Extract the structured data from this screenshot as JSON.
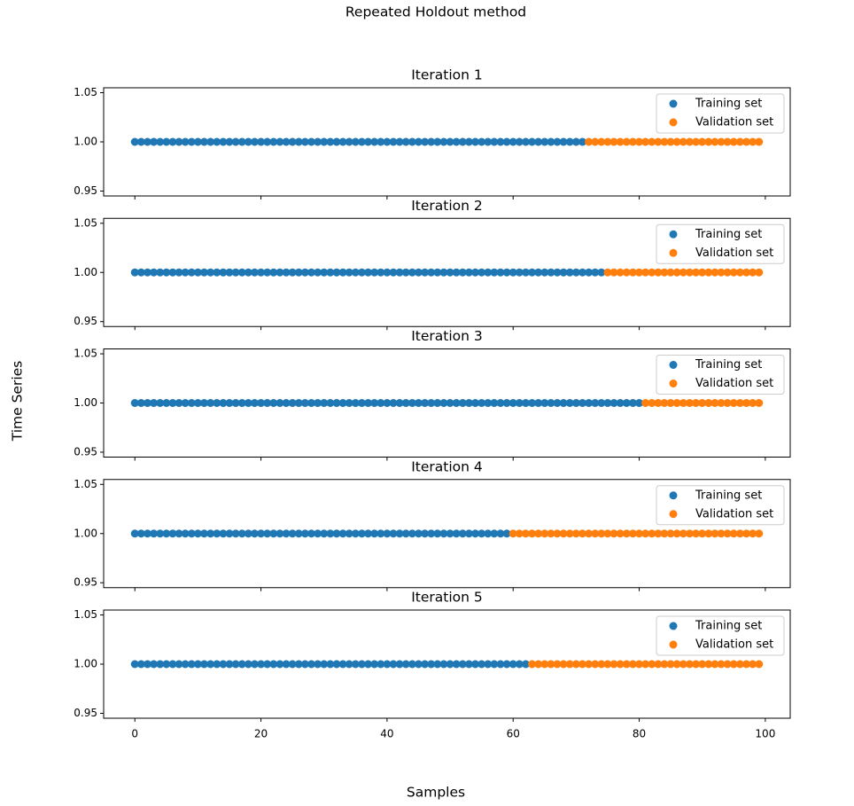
{
  "title": "Repeated Holdout method",
  "x_label": "Samples",
  "y_label": "Time Series",
  "chart_data": [
    {
      "type": "scatter",
      "title": "Iteration 1",
      "xlim": [
        -4.95,
        103.95
      ],
      "ylim": [
        0.945,
        1.055
      ],
      "xticks": [
        0,
        20,
        40,
        60,
        80,
        100
      ],
      "yticks": [
        0.95,
        {
          "value": 1,
          "label": "1.00"
        },
        1.05
      ],
      "legend": "upper right",
      "series": [
        {
          "name": "Training set",
          "color": "#1f77b4",
          "x": [
            0,
            1,
            2,
            3,
            4,
            5,
            6,
            7,
            8,
            9,
            10,
            11,
            12,
            13,
            14,
            15,
            16,
            17,
            18,
            19,
            20,
            21,
            22,
            23,
            24,
            25,
            26,
            27,
            28,
            29,
            30,
            31,
            32,
            33,
            34,
            35,
            36,
            37,
            38,
            39,
            40,
            41,
            42,
            43,
            44,
            45,
            46,
            47,
            48,
            49,
            50,
            51,
            52,
            53,
            54,
            55,
            56,
            57,
            58,
            59,
            60,
            61,
            62,
            63,
            64,
            65,
            66,
            67,
            68,
            69,
            70,
            71
          ],
          "values": [
            1,
            1,
            1,
            1,
            1,
            1,
            1,
            1,
            1,
            1,
            1,
            1,
            1,
            1,
            1,
            1,
            1,
            1,
            1,
            1,
            1,
            1,
            1,
            1,
            1,
            1,
            1,
            1,
            1,
            1,
            1,
            1,
            1,
            1,
            1,
            1,
            1,
            1,
            1,
            1,
            1,
            1,
            1,
            1,
            1,
            1,
            1,
            1,
            1,
            1,
            1,
            1,
            1,
            1,
            1,
            1,
            1,
            1,
            1,
            1,
            1,
            1,
            1,
            1,
            1,
            1,
            1,
            1,
            1,
            1,
            1,
            1
          ]
        },
        {
          "name": "Validation set",
          "color": "#ff7f0e",
          "x": [
            72,
            73,
            74,
            75,
            76,
            77,
            78,
            79,
            80,
            81,
            82,
            83,
            84,
            85,
            86,
            87,
            88,
            89,
            90,
            91,
            92,
            93,
            94,
            95,
            96,
            97,
            98,
            99
          ],
          "values": [
            1,
            1,
            1,
            1,
            1,
            1,
            1,
            1,
            1,
            1,
            1,
            1,
            1,
            1,
            1,
            1,
            1,
            1,
            1,
            1,
            1,
            1,
            1,
            1,
            1,
            1,
            1,
            1
          ]
        }
      ]
    },
    {
      "type": "scatter",
      "title": "Iteration 2",
      "xlim": [
        -4.95,
        103.95
      ],
      "ylim": [
        0.945,
        1.055
      ],
      "xticks": [
        0,
        20,
        40,
        60,
        80,
        100
      ],
      "yticks": [
        0.95,
        {
          "value": 1,
          "label": "1.00"
        },
        1.05
      ],
      "legend": "upper right",
      "series": [
        {
          "name": "Training set",
          "color": "#1f77b4",
          "x": [
            0,
            1,
            2,
            3,
            4,
            5,
            6,
            7,
            8,
            9,
            10,
            11,
            12,
            13,
            14,
            15,
            16,
            17,
            18,
            19,
            20,
            21,
            22,
            23,
            24,
            25,
            26,
            27,
            28,
            29,
            30,
            31,
            32,
            33,
            34,
            35,
            36,
            37,
            38,
            39,
            40,
            41,
            42,
            43,
            44,
            45,
            46,
            47,
            48,
            49,
            50,
            51,
            52,
            53,
            54,
            55,
            56,
            57,
            58,
            59,
            60,
            61,
            62,
            63,
            64,
            65,
            66,
            67,
            68,
            69,
            70,
            71,
            72,
            73,
            74
          ],
          "values": [
            1,
            1,
            1,
            1,
            1,
            1,
            1,
            1,
            1,
            1,
            1,
            1,
            1,
            1,
            1,
            1,
            1,
            1,
            1,
            1,
            1,
            1,
            1,
            1,
            1,
            1,
            1,
            1,
            1,
            1,
            1,
            1,
            1,
            1,
            1,
            1,
            1,
            1,
            1,
            1,
            1,
            1,
            1,
            1,
            1,
            1,
            1,
            1,
            1,
            1,
            1,
            1,
            1,
            1,
            1,
            1,
            1,
            1,
            1,
            1,
            1,
            1,
            1,
            1,
            1,
            1,
            1,
            1,
            1,
            1,
            1,
            1,
            1,
            1,
            1
          ]
        },
        {
          "name": "Validation set",
          "color": "#ff7f0e",
          "x": [
            75,
            76,
            77,
            78,
            79,
            80,
            81,
            82,
            83,
            84,
            85,
            86,
            87,
            88,
            89,
            90,
            91,
            92,
            93,
            94,
            95,
            96,
            97,
            98,
            99
          ],
          "values": [
            1,
            1,
            1,
            1,
            1,
            1,
            1,
            1,
            1,
            1,
            1,
            1,
            1,
            1,
            1,
            1,
            1,
            1,
            1,
            1,
            1,
            1,
            1,
            1,
            1
          ]
        }
      ]
    },
    {
      "type": "scatter",
      "title": "Iteration 3",
      "xlim": [
        -4.95,
        103.95
      ],
      "ylim": [
        0.945,
        1.055
      ],
      "xticks": [
        0,
        20,
        40,
        60,
        80,
        100
      ],
      "yticks": [
        0.95,
        {
          "value": 1,
          "label": "1.00"
        },
        1.05
      ],
      "legend": "upper right",
      "series": [
        {
          "name": "Training set",
          "color": "#1f77b4",
          "x": [
            0,
            1,
            2,
            3,
            4,
            5,
            6,
            7,
            8,
            9,
            10,
            11,
            12,
            13,
            14,
            15,
            16,
            17,
            18,
            19,
            20,
            21,
            22,
            23,
            24,
            25,
            26,
            27,
            28,
            29,
            30,
            31,
            32,
            33,
            34,
            35,
            36,
            37,
            38,
            39,
            40,
            41,
            42,
            43,
            44,
            45,
            46,
            47,
            48,
            49,
            50,
            51,
            52,
            53,
            54,
            55,
            56,
            57,
            58,
            59,
            60,
            61,
            62,
            63,
            64,
            65,
            66,
            67,
            68,
            69,
            70,
            71,
            72,
            73,
            74,
            75,
            76,
            77,
            78,
            79,
            80
          ],
          "values": [
            1,
            1,
            1,
            1,
            1,
            1,
            1,
            1,
            1,
            1,
            1,
            1,
            1,
            1,
            1,
            1,
            1,
            1,
            1,
            1,
            1,
            1,
            1,
            1,
            1,
            1,
            1,
            1,
            1,
            1,
            1,
            1,
            1,
            1,
            1,
            1,
            1,
            1,
            1,
            1,
            1,
            1,
            1,
            1,
            1,
            1,
            1,
            1,
            1,
            1,
            1,
            1,
            1,
            1,
            1,
            1,
            1,
            1,
            1,
            1,
            1,
            1,
            1,
            1,
            1,
            1,
            1,
            1,
            1,
            1,
            1,
            1,
            1,
            1,
            1,
            1,
            1,
            1,
            1,
            1,
            1
          ]
        },
        {
          "name": "Validation set",
          "color": "#ff7f0e",
          "x": [
            81,
            82,
            83,
            84,
            85,
            86,
            87,
            88,
            89,
            90,
            91,
            92,
            93,
            94,
            95,
            96,
            97,
            98,
            99
          ],
          "values": [
            1,
            1,
            1,
            1,
            1,
            1,
            1,
            1,
            1,
            1,
            1,
            1,
            1,
            1,
            1,
            1,
            1,
            1,
            1
          ]
        }
      ]
    },
    {
      "type": "scatter",
      "title": "Iteration 4",
      "xlim": [
        -4.95,
        103.95
      ],
      "ylim": [
        0.945,
        1.055
      ],
      "xticks": [
        0,
        20,
        40,
        60,
        80,
        100
      ],
      "yticks": [
        0.95,
        {
          "value": 1,
          "label": "1.00"
        },
        1.05
      ],
      "legend": "upper right",
      "series": [
        {
          "name": "Training set",
          "color": "#1f77b4",
          "x": [
            0,
            1,
            2,
            3,
            4,
            5,
            6,
            7,
            8,
            9,
            10,
            11,
            12,
            13,
            14,
            15,
            16,
            17,
            18,
            19,
            20,
            21,
            22,
            23,
            24,
            25,
            26,
            27,
            28,
            29,
            30,
            31,
            32,
            33,
            34,
            35,
            36,
            37,
            38,
            39,
            40,
            41,
            42,
            43,
            44,
            45,
            46,
            47,
            48,
            49,
            50,
            51,
            52,
            53,
            54,
            55,
            56,
            57,
            58,
            59
          ],
          "values": [
            1,
            1,
            1,
            1,
            1,
            1,
            1,
            1,
            1,
            1,
            1,
            1,
            1,
            1,
            1,
            1,
            1,
            1,
            1,
            1,
            1,
            1,
            1,
            1,
            1,
            1,
            1,
            1,
            1,
            1,
            1,
            1,
            1,
            1,
            1,
            1,
            1,
            1,
            1,
            1,
            1,
            1,
            1,
            1,
            1,
            1,
            1,
            1,
            1,
            1,
            1,
            1,
            1,
            1,
            1,
            1,
            1,
            1,
            1,
            1
          ]
        },
        {
          "name": "Validation set",
          "color": "#ff7f0e",
          "x": [
            60,
            61,
            62,
            63,
            64,
            65,
            66,
            67,
            68,
            69,
            70,
            71,
            72,
            73,
            74,
            75,
            76,
            77,
            78,
            79,
            80,
            81,
            82,
            83,
            84,
            85,
            86,
            87,
            88,
            89,
            90,
            91,
            92,
            93,
            94,
            95,
            96,
            97,
            98,
            99
          ],
          "values": [
            1,
            1,
            1,
            1,
            1,
            1,
            1,
            1,
            1,
            1,
            1,
            1,
            1,
            1,
            1,
            1,
            1,
            1,
            1,
            1,
            1,
            1,
            1,
            1,
            1,
            1,
            1,
            1,
            1,
            1,
            1,
            1,
            1,
            1,
            1,
            1,
            1,
            1,
            1,
            1
          ]
        }
      ]
    },
    {
      "type": "scatter",
      "title": "Iteration 5",
      "xlim": [
        -4.95,
        103.95
      ],
      "ylim": [
        0.945,
        1.055
      ],
      "xticks": [
        0,
        20,
        40,
        60,
        80,
        100
      ],
      "yticks": [
        0.95,
        {
          "value": 1,
          "label": "1.00"
        },
        1.05
      ],
      "legend": "upper right",
      "series": [
        {
          "name": "Training set",
          "color": "#1f77b4",
          "x": [
            0,
            1,
            2,
            3,
            4,
            5,
            6,
            7,
            8,
            9,
            10,
            11,
            12,
            13,
            14,
            15,
            16,
            17,
            18,
            19,
            20,
            21,
            22,
            23,
            24,
            25,
            26,
            27,
            28,
            29,
            30,
            31,
            32,
            33,
            34,
            35,
            36,
            37,
            38,
            39,
            40,
            41,
            42,
            43,
            44,
            45,
            46,
            47,
            48,
            49,
            50,
            51,
            52,
            53,
            54,
            55,
            56,
            57,
            58,
            59,
            60,
            61,
            62
          ],
          "values": [
            1,
            1,
            1,
            1,
            1,
            1,
            1,
            1,
            1,
            1,
            1,
            1,
            1,
            1,
            1,
            1,
            1,
            1,
            1,
            1,
            1,
            1,
            1,
            1,
            1,
            1,
            1,
            1,
            1,
            1,
            1,
            1,
            1,
            1,
            1,
            1,
            1,
            1,
            1,
            1,
            1,
            1,
            1,
            1,
            1,
            1,
            1,
            1,
            1,
            1,
            1,
            1,
            1,
            1,
            1,
            1,
            1,
            1,
            1,
            1,
            1,
            1,
            1
          ]
        },
        {
          "name": "Validation set",
          "color": "#ff7f0e",
          "x": [
            63,
            64,
            65,
            66,
            67,
            68,
            69,
            70,
            71,
            72,
            73,
            74,
            75,
            76,
            77,
            78,
            79,
            80,
            81,
            82,
            83,
            84,
            85,
            86,
            87,
            88,
            89,
            90,
            91,
            92,
            93,
            94,
            95,
            96,
            97,
            98,
            99
          ],
          "values": [
            1,
            1,
            1,
            1,
            1,
            1,
            1,
            1,
            1,
            1,
            1,
            1,
            1,
            1,
            1,
            1,
            1,
            1,
            1,
            1,
            1,
            1,
            1,
            1,
            1,
            1,
            1,
            1,
            1,
            1,
            1,
            1,
            1,
            1,
            1,
            1,
            1
          ]
        }
      ]
    }
  ]
}
